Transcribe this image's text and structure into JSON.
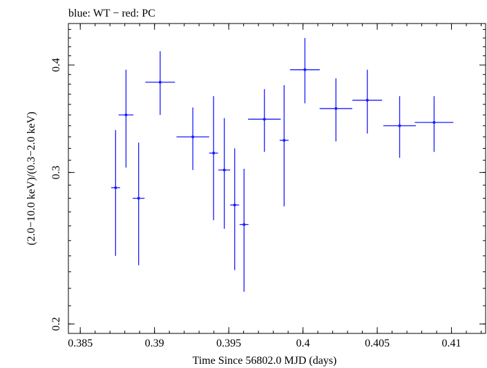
{
  "chart_data": {
    "type": "scatter",
    "title": "blue: WT − red: PC",
    "xlabel": "Time Since 56802.0 MJD (days)",
    "ylabel": "(2.0−10.0 keV)/(0.3−2.0 keV)",
    "xlim": [
      0.3842,
      0.4123
    ],
    "ylim": [
      0.195,
      0.447
    ],
    "yscale": "log",
    "x_ticks": [
      "0.385",
      "0.39",
      "0.395",
      "0.4",
      "0.405",
      "0.41"
    ],
    "y_ticks": [
      "0.2",
      "0.3",
      "0.4"
    ],
    "series": [
      {
        "name": "WT",
        "color": "#1a1aff",
        "points": [
          {
            "x": 0.38738,
            "y": 0.288,
            "xerr": 0.0003,
            "ylo": 0.24,
            "yhi": 0.336
          },
          {
            "x": 0.38808,
            "y": 0.35,
            "xerr": 0.0005,
            "ylo": 0.304,
            "yhi": 0.395
          },
          {
            "x": 0.38893,
            "y": 0.28,
            "xerr": 0.0004,
            "ylo": 0.234,
            "yhi": 0.325
          },
          {
            "x": 0.39038,
            "y": 0.382,
            "xerr": 0.001,
            "ylo": 0.35,
            "yhi": 0.415
          },
          {
            "x": 0.39258,
            "y": 0.33,
            "xerr": 0.0011,
            "ylo": 0.302,
            "yhi": 0.357
          },
          {
            "x": 0.39398,
            "y": 0.316,
            "xerr": 0.0003,
            "ylo": 0.264,
            "yhi": 0.368
          },
          {
            "x": 0.3947,
            "y": 0.302,
            "xerr": 0.0004,
            "ylo": 0.258,
            "yhi": 0.347
          },
          {
            "x": 0.3954,
            "y": 0.275,
            "xerr": 0.0003,
            "ylo": 0.231,
            "yhi": 0.32
          },
          {
            "x": 0.39603,
            "y": 0.261,
            "xerr": 0.0003,
            "ylo": 0.218,
            "yhi": 0.303
          },
          {
            "x": 0.3974,
            "y": 0.346,
            "xerr": 0.0011,
            "ylo": 0.317,
            "yhi": 0.375
          },
          {
            "x": 0.39873,
            "y": 0.327,
            "xerr": 0.0003,
            "ylo": 0.274,
            "yhi": 0.379
          },
          {
            "x": 0.40013,
            "y": 0.395,
            "xerr": 0.001,
            "ylo": 0.361,
            "yhi": 0.43
          },
          {
            "x": 0.40222,
            "y": 0.356,
            "xerr": 0.0011,
            "ylo": 0.326,
            "yhi": 0.386
          },
          {
            "x": 0.40433,
            "y": 0.364,
            "xerr": 0.001,
            "ylo": 0.333,
            "yhi": 0.395
          },
          {
            "x": 0.40651,
            "y": 0.34,
            "xerr": 0.0011,
            "ylo": 0.312,
            "yhi": 0.368
          },
          {
            "x": 0.40883,
            "y": 0.343,
            "xerr": 0.0013,
            "ylo": 0.317,
            "yhi": 0.368
          }
        ]
      }
    ]
  }
}
